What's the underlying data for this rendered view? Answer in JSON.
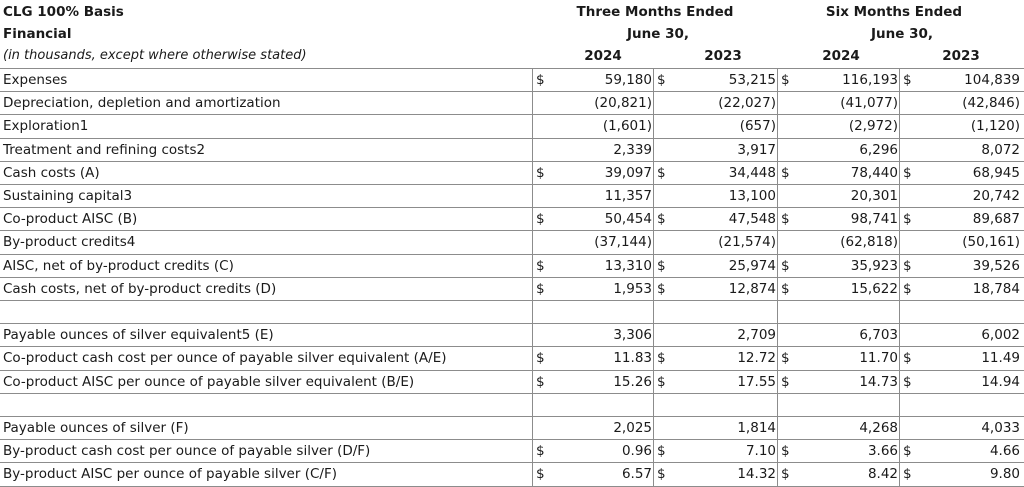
{
  "header": {
    "title": "CLG 100% Basis",
    "subtitle": "Financial",
    "note": "(in thousands, except where otherwise stated)",
    "three_months": "Three Months Ended",
    "three_months_date": "June 30,",
    "six_months": "Six Months Ended",
    "six_months_date": "June 30,",
    "years": [
      "2024",
      "2023",
      "2024",
      "2023"
    ]
  },
  "rows": [
    {
      "label": "Expenses",
      "d1": "$",
      "v1": "59,180",
      "d2": "$",
      "v2": "53,215",
      "d3": "$",
      "v3": "116,193",
      "d4": "$",
      "v4": "104,839"
    },
    {
      "label": "Depreciation, depletion and amortization",
      "d1": "",
      "v1": "(20,821)",
      "d2": "",
      "v2": "(22,027)",
      "d3": "",
      "v3": "(41,077)",
      "d4": "",
      "v4": "(42,846)"
    },
    {
      "label": "Exploration1",
      "d1": "",
      "v1": "(1,601)",
      "d2": "",
      "v2": "(657)",
      "d3": "",
      "v3": "(2,972)",
      "d4": "",
      "v4": "(1,120)"
    },
    {
      "label": "Treatment and refining costs2",
      "d1": "",
      "v1": "2,339",
      "d2": "",
      "v2": "3,917",
      "d3": "",
      "v3": "6,296",
      "d4": "",
      "v4": "8,072"
    },
    {
      "label": "Cash costs (A)",
      "d1": "$",
      "v1": "39,097",
      "d2": "$",
      "v2": "34,448",
      "d3": "$",
      "v3": "78,440",
      "d4": "$",
      "v4": "68,945"
    },
    {
      "label": "Sustaining capital3",
      "d1": "",
      "v1": "11,357",
      "d2": "",
      "v2": "13,100",
      "d3": "",
      "v3": "20,301",
      "d4": "",
      "v4": "20,742"
    },
    {
      "label": "Co-product AISC (B)",
      "d1": "$",
      "v1": "50,454",
      "d2": "$",
      "v2": "47,548",
      "d3": "$",
      "v3": "98,741",
      "d4": "$",
      "v4": "89,687"
    },
    {
      "label": "By-product credits4",
      "d1": "",
      "v1": "(37,144)",
      "d2": "",
      "v2": "(21,574)",
      "d3": "",
      "v3": "(62,818)",
      "d4": "",
      "v4": "(50,161)"
    },
    {
      "label": "AISC, net of by-product credits (C)",
      "d1": "$",
      "v1": "13,310",
      "d2": "$",
      "v2": "25,974",
      "d3": "$",
      "v3": "35,923",
      "d4": "$",
      "v4": "39,526"
    },
    {
      "label": "Cash costs, net of by-product credits (D)",
      "d1": "$",
      "v1": "1,953",
      "d2": "$",
      "v2": "12,874",
      "d3": "$",
      "v3": "15,622",
      "d4": "$",
      "v4": "18,784"
    },
    {
      "label": "",
      "d1": "",
      "v1": "",
      "d2": "",
      "v2": "",
      "d3": "",
      "v3": "",
      "d4": "",
      "v4": ""
    },
    {
      "label": "Payable ounces of silver equivalent5 (E)",
      "d1": "",
      "v1": "3,306",
      "d2": "",
      "v2": "2,709",
      "d3": "",
      "v3": "6,703",
      "d4": "",
      "v4": "6,002"
    },
    {
      "label": "Co-product cash cost per ounce of payable silver equivalent (A/E)",
      "d1": "$",
      "v1": "11.83",
      "d2": "$",
      "v2": "12.72",
      "d3": "$",
      "v3": "11.70",
      "d4": "$",
      "v4": "11.49"
    },
    {
      "label": "Co-product AISC per ounce of payable silver equivalent (B/E)",
      "d1": "$",
      "v1": "15.26",
      "d2": "$",
      "v2": "17.55",
      "d3": "$",
      "v3": "14.73",
      "d4": "$",
      "v4": "14.94"
    },
    {
      "label": "",
      "d1": "",
      "v1": "",
      "d2": "",
      "v2": "",
      "d3": "",
      "v3": "",
      "d4": "",
      "v4": ""
    },
    {
      "label": "Payable ounces of silver (F)",
      "d1": "",
      "v1": "2,025",
      "d2": "",
      "v2": "1,814",
      "d3": "",
      "v3": "4,268",
      "d4": "",
      "v4": "4,033"
    },
    {
      "label": "By-product cash cost per ounce of payable silver (D/F)",
      "d1": "$",
      "v1": "0.96",
      "d2": "$",
      "v2": "7.10",
      "d3": "$",
      "v3": "3.66",
      "d4": "$",
      "v4": "4.66"
    },
    {
      "label": "By-product AISC per ounce of payable silver (C/F)",
      "d1": "$",
      "v1": "6.57",
      "d2": "$",
      "v2": "14.32",
      "d3": "$",
      "v3": "8.42",
      "d4": "$",
      "v4": "9.80"
    }
  ]
}
